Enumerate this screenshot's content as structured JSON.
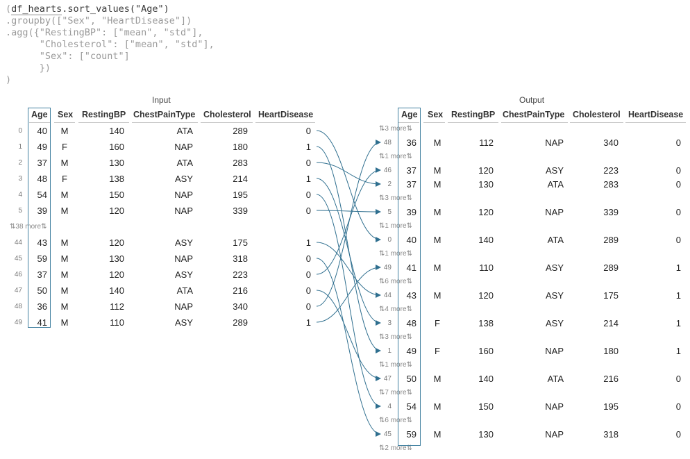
{
  "code_lines": [
    "(df_hearts.sort_values(\"Age\")",
    ".groupby([\"Sex\", \"HeartDisease\"])",
    ".agg({\"RestingBP\": [\"mean\", \"std\"],",
    "      \"Cholesterol\": [\"mean\", \"std\"],",
    "      \"Sex\": [\"count\"]",
    "      })",
    ")"
  ],
  "input": {
    "title": "Input",
    "columns": [
      "Age",
      "Sex",
      "RestingBP",
      "ChestPainType",
      "Cholesterol",
      "HeartDisease"
    ],
    "rows": [
      {
        "idx": "0",
        "age": "40",
        "sex": "M",
        "bp": "140",
        "cp": "ATA",
        "chol": "289",
        "hd": "0"
      },
      {
        "idx": "1",
        "age": "49",
        "sex": "F",
        "bp": "160",
        "cp": "NAP",
        "chol": "180",
        "hd": "1"
      },
      {
        "idx": "2",
        "age": "37",
        "sex": "M",
        "bp": "130",
        "cp": "ATA",
        "chol": "283",
        "hd": "0"
      },
      {
        "idx": "3",
        "age": "48",
        "sex": "F",
        "bp": "138",
        "cp": "ASY",
        "chol": "214",
        "hd": "1"
      },
      {
        "idx": "4",
        "age": "54",
        "sex": "M",
        "bp": "150",
        "cp": "NAP",
        "chol": "195",
        "hd": "0"
      },
      {
        "idx": "5",
        "age": "39",
        "sex": "M",
        "bp": "120",
        "cp": "NAP",
        "chol": "339",
        "hd": "0"
      },
      {
        "more": "⇅38 more⇅"
      },
      {
        "idx": "44",
        "age": "43",
        "sex": "M",
        "bp": "120",
        "cp": "ASY",
        "chol": "175",
        "hd": "1"
      },
      {
        "idx": "45",
        "age": "59",
        "sex": "M",
        "bp": "130",
        "cp": "NAP",
        "chol": "318",
        "hd": "0"
      },
      {
        "idx": "46",
        "age": "37",
        "sex": "M",
        "bp": "120",
        "cp": "ASY",
        "chol": "223",
        "hd": "0"
      },
      {
        "idx": "47",
        "age": "50",
        "sex": "M",
        "bp": "140",
        "cp": "ATA",
        "chol": "216",
        "hd": "0"
      },
      {
        "idx": "48",
        "age": "36",
        "sex": "M",
        "bp": "112",
        "cp": "NAP",
        "chol": "340",
        "hd": "0"
      },
      {
        "idx": "49",
        "age": "41",
        "sex": "M",
        "bp": "110",
        "cp": "ASY",
        "chol": "289",
        "hd": "1"
      }
    ]
  },
  "output": {
    "title": "Output",
    "columns": [
      "Age",
      "Sex",
      "RestingBP",
      "ChestPainType",
      "Cholesterol",
      "HeartDisease"
    ],
    "rows": [
      {
        "more": "⇅3 more⇅"
      },
      {
        "idx": "48",
        "age": "36",
        "sex": "M",
        "bp": "112",
        "cp": "NAP",
        "chol": "340",
        "hd": "0"
      },
      {
        "more": "⇅1 more⇅"
      },
      {
        "idx": "46",
        "age": "37",
        "sex": "M",
        "bp": "120",
        "cp": "ASY",
        "chol": "223",
        "hd": "0"
      },
      {
        "idx": "2",
        "age": "37",
        "sex": "M",
        "bp": "130",
        "cp": "ATA",
        "chol": "283",
        "hd": "0"
      },
      {
        "more": "⇅3 more⇅"
      },
      {
        "idx": "5",
        "age": "39",
        "sex": "M",
        "bp": "120",
        "cp": "NAP",
        "chol": "339",
        "hd": "0"
      },
      {
        "more": "⇅1 more⇅"
      },
      {
        "idx": "0",
        "age": "40",
        "sex": "M",
        "bp": "140",
        "cp": "ATA",
        "chol": "289",
        "hd": "0"
      },
      {
        "more": "⇅1 more⇅"
      },
      {
        "idx": "49",
        "age": "41",
        "sex": "M",
        "bp": "110",
        "cp": "ASY",
        "chol": "289",
        "hd": "1"
      },
      {
        "more": "⇅6 more⇅"
      },
      {
        "idx": "44",
        "age": "43",
        "sex": "M",
        "bp": "120",
        "cp": "ASY",
        "chol": "175",
        "hd": "1"
      },
      {
        "more": "⇅4 more⇅"
      },
      {
        "idx": "3",
        "age": "48",
        "sex": "F",
        "bp": "138",
        "cp": "ASY",
        "chol": "214",
        "hd": "1"
      },
      {
        "more": "⇅3 more⇅"
      },
      {
        "idx": "1",
        "age": "49",
        "sex": "F",
        "bp": "160",
        "cp": "NAP",
        "chol": "180",
        "hd": "1"
      },
      {
        "more": "⇅1 more⇅"
      },
      {
        "idx": "47",
        "age": "50",
        "sex": "M",
        "bp": "140",
        "cp": "ATA",
        "chol": "216",
        "hd": "0"
      },
      {
        "more": "⇅7 more⇅"
      },
      {
        "idx": "4",
        "age": "54",
        "sex": "M",
        "bp": "150",
        "cp": "NAP",
        "chol": "195",
        "hd": "0"
      },
      {
        "more": "⇅6 more⇅"
      },
      {
        "idx": "45",
        "age": "59",
        "sex": "M",
        "bp": "130",
        "cp": "NAP",
        "chol": "318",
        "hd": "0"
      },
      {
        "more": "⇅2 more⇅"
      }
    ]
  },
  "arrow_color": "#2f6f8f",
  "age_box_color": "#3f7f9f"
}
